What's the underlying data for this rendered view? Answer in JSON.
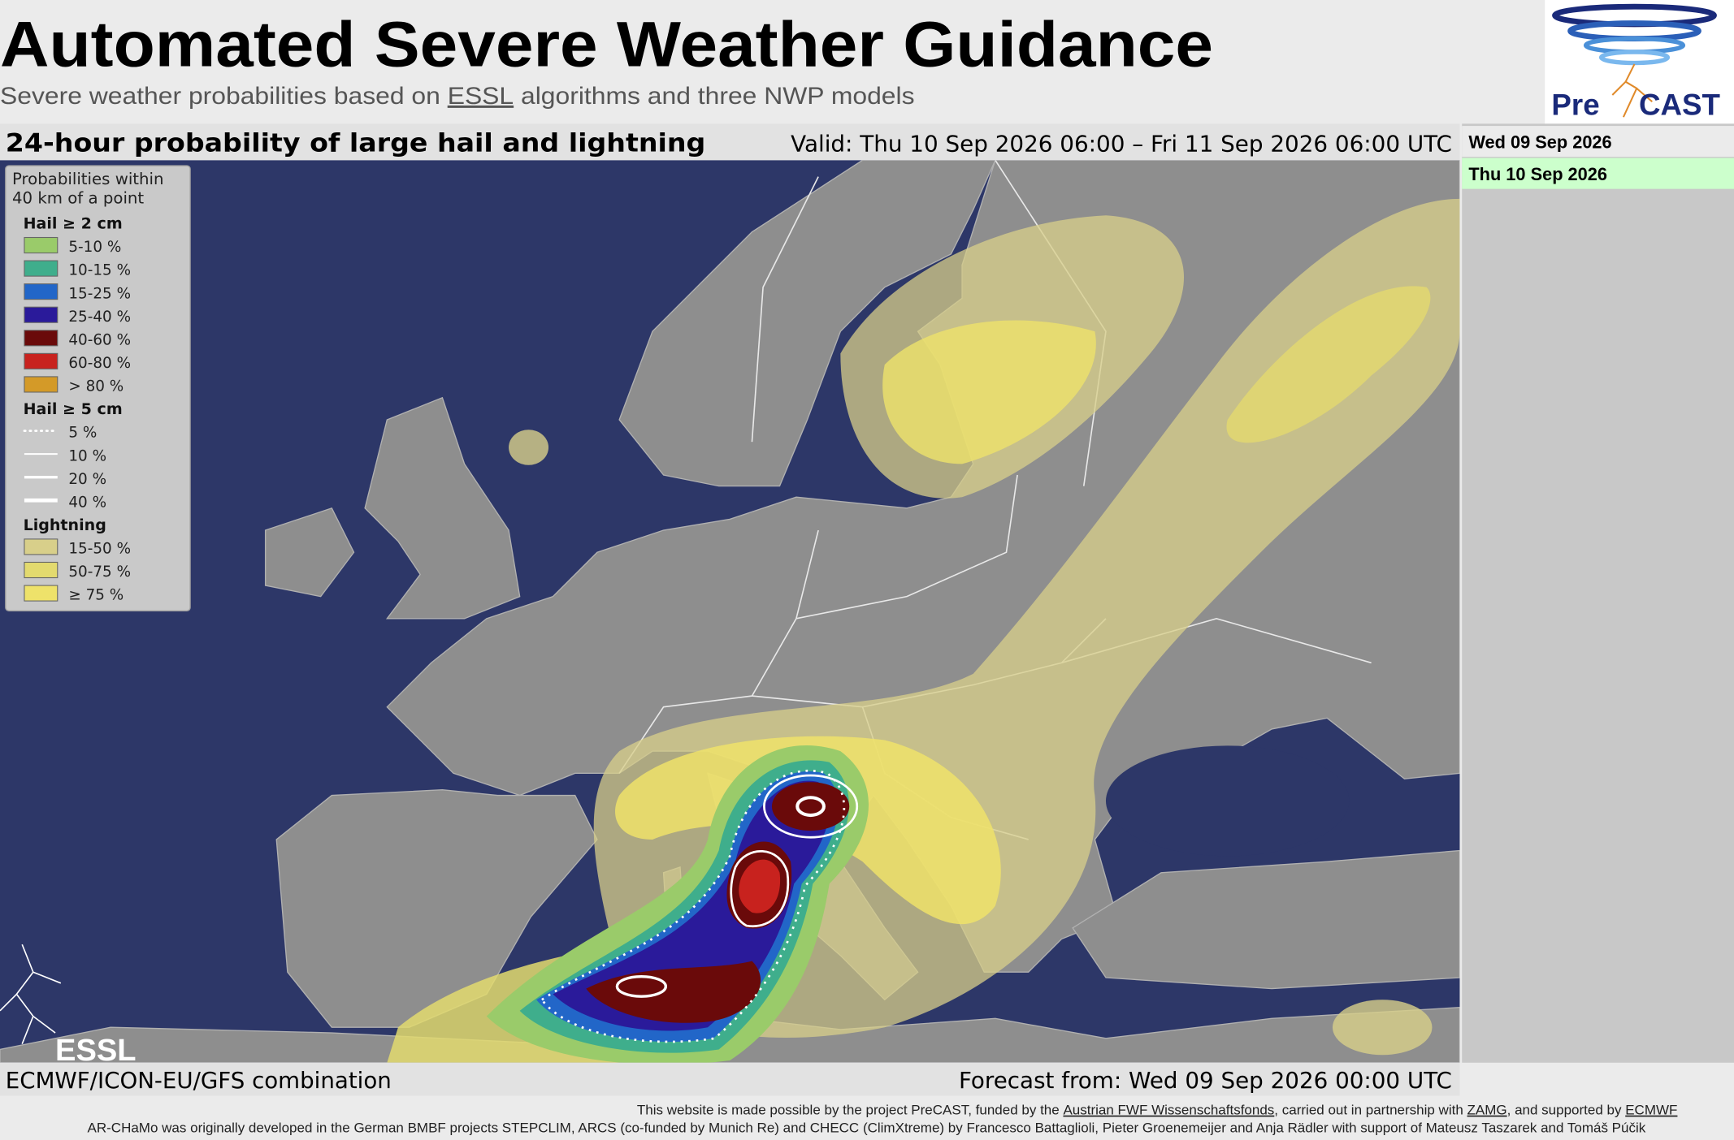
{
  "header": {
    "title": "Automated Severe Weather Guidance",
    "subtitle": [
      "Severe weather probabilities based on ",
      "ESSL",
      " algorithms and three NWP models"
    ],
    "logo": [
      "Pre",
      "CAST"
    ]
  },
  "map": {
    "title": "24-hour probability of large hail and lightning",
    "valid": "Valid: Thu 10 Sep 2026 06:00 – Fri 11 Sep 2026 06:00 UTC",
    "legend": {
      "heading": [
        "Probabilities within",
        "40 km of a point"
      ],
      "hail_2cm": {
        "title": "Hail ≥ 2 cm",
        "items": [
          {
            "label": "5-10 %",
            "color": "#9acb6a"
          },
          {
            "label": "10-15 %",
            "color": "#3fae8c"
          },
          {
            "label": "15-25 %",
            "color": "#2266c8"
          },
          {
            "label": "25-40 %",
            "color": "#2a1a9a"
          },
          {
            "label": "40-60 %",
            "color": "#6a0a0a"
          },
          {
            "label": "60-80 %",
            "color": "#c8221e"
          },
          {
            "label": "> 80 %",
            "color": "#d49a28"
          }
        ]
      },
      "hail_5cm": {
        "title": "Hail ≥ 5 cm",
        "items": [
          {
            "label": "5 %",
            "line_width": 2,
            "dotted": true
          },
          {
            "label": "10 %",
            "line_width": 1.5
          },
          {
            "label": "20 %",
            "line_width": 2.5
          },
          {
            "label": "40 %",
            "line_width": 3.5
          }
        ]
      },
      "lightning": {
        "title": "Lightning",
        "items": [
          {
            "label": "15-50 %",
            "color": "#d8cf8a"
          },
          {
            "label": "50-75 %",
            "color": "#e3da6e"
          },
          {
            "label": "≥ 75 %",
            "color": "#eee26a"
          }
        ]
      }
    },
    "logo": "ESSL",
    "model": "ECMWF/ICON-EU/GFS combination",
    "forecast_from": "Forecast from: Wed 09 Sep 2026 00:00 UTC"
  },
  "sidebar": {
    "dates": [
      "Wed 09 Sep 2026",
      "Thu 10 Sep 2026"
    ]
  },
  "footer": {
    "line1": [
      "This website is made possible by the project PreCAST, funded by the ",
      "Austrian FWF Wissenschaftsfonds",
      ", carried out in partnership with ",
      "ZAMG",
      ", and supported by ",
      "ECMWF"
    ],
    "line2": "AR-CHaMo was originally developed in the German BMBF projects STEPCLIM, ARCS (co-funded by Munich Re) and CHECC (ClimXtreme) by Francesco Battaglioli, Pieter Groenemeijer and Anja Rädler with support of Mateusz Taszarek and Tomáš Púčik"
  }
}
